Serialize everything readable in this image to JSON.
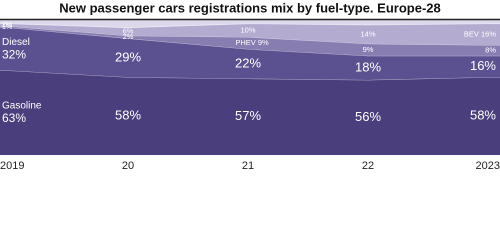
{
  "chart_data": {
    "type": "stacked-area",
    "title": "New passenger cars registrations mix by fuel-type. Europe-28",
    "categories": [
      "2019",
      "20",
      "21",
      "22",
      "2023"
    ],
    "ylim": [
      0,
      100
    ],
    "series": [
      {
        "name": "Gasoline",
        "color": "#4a3f7c",
        "values": [
          63,
          58,
          57,
          56,
          58
        ],
        "value_labels": [
          "63%",
          "58%",
          "57%",
          "56%",
          "58%"
        ]
      },
      {
        "name": "Diesel",
        "color": "#5c5190",
        "values": [
          32,
          29,
          22,
          18,
          16
        ],
        "value_labels": [
          "32%",
          "29%",
          "22%",
          "18%",
          "16%"
        ]
      },
      {
        "name": "PHEV",
        "color": "#877db0",
        "values": [
          1,
          2,
          9,
          9,
          8
        ],
        "value_labels": [
          "1%",
          "2%",
          "9%",
          "9%",
          "8%"
        ]
      },
      {
        "name": "BEV",
        "color": "#b3acd0",
        "values": [
          2,
          6,
          10,
          14,
          16
        ],
        "value_labels": [
          "2%",
          "6%",
          "10%",
          "14%",
          "16%"
        ]
      }
    ]
  }
}
